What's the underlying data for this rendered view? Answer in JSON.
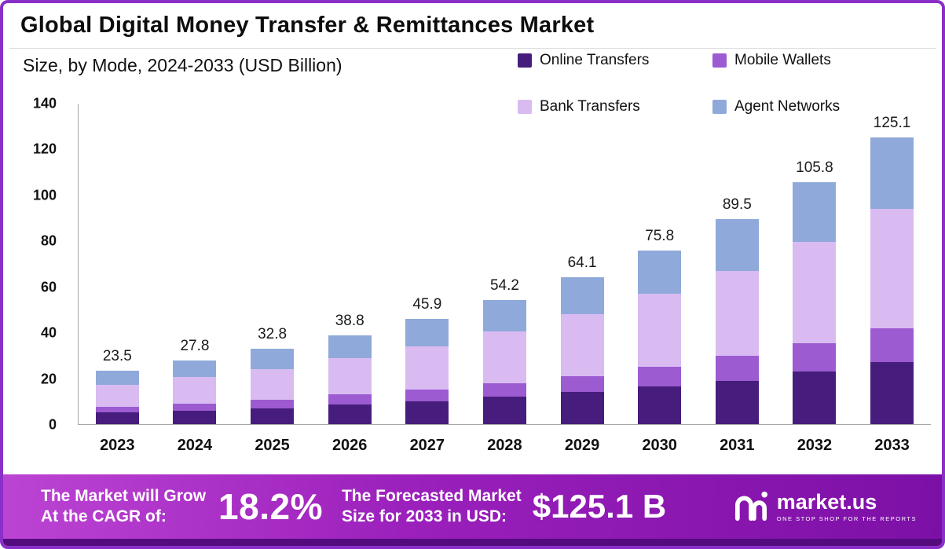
{
  "header": {
    "title": "Global Digital Money Transfer & Remittances Market",
    "subtitle": "Size, by Mode, 2024-2033 (USD Billion)"
  },
  "chart_data": {
    "type": "bar",
    "stacked": true,
    "title": "Global Digital Money Transfer & Remittances Market",
    "subtitle": "Size, by Mode, 2024-2033 (USD Billion)",
    "xlabel": "",
    "ylabel": "USD Billion",
    "ylim": [
      0,
      140
    ],
    "yticks": [
      0,
      20,
      40,
      60,
      80,
      100,
      120,
      140
    ],
    "grid": false,
    "legend_position": "top-right",
    "categories": [
      "2023",
      "2024",
      "2025",
      "2026",
      "2027",
      "2028",
      "2029",
      "2030",
      "2031",
      "2032",
      "2033"
    ],
    "series": [
      {
        "name": "Online Transfers",
        "color": "#461d7c",
        "values": [
          5.0,
          6.0,
          7.0,
          8.5,
          10.0,
          12.0,
          14.0,
          16.5,
          19.0,
          23.0,
          27.0
        ]
      },
      {
        "name": "Mobile Wallets",
        "color": "#9c5bd1",
        "values": [
          2.5,
          3.0,
          3.5,
          4.5,
          5.0,
          6.0,
          7.0,
          8.5,
          11.0,
          12.5,
          15.0
        ]
      },
      {
        "name": "Bank Transfers",
        "color": "#d9bbf2",
        "values": [
          9.5,
          11.5,
          13.5,
          16.0,
          19.0,
          22.5,
          27.0,
          32.0,
          37.0,
          44.0,
          52.0
        ]
      },
      {
        "name": "Agent Networks",
        "color": "#8fa9da",
        "values": [
          6.5,
          7.3,
          8.8,
          9.8,
          11.9,
          13.7,
          16.1,
          18.8,
          22.5,
          26.3,
          31.1
        ]
      }
    ],
    "totals": [
      "23.5",
      "27.8",
      "32.8",
      "38.8",
      "45.9",
      "54.2",
      "64.1",
      "75.8",
      "89.5",
      "105.8",
      "125.1"
    ]
  },
  "banner": {
    "cagr_line1": "The Market will Grow",
    "cagr_line2": "At the CAGR of:",
    "cagr_value": "18.2%",
    "forecast_line1": "The Forecasted Market",
    "forecast_line2": "Size for 2033 in USD:",
    "forecast_value": "$125.1 B",
    "logo_text": "market.us",
    "logo_tagline": "ONE STOP SHOP FOR THE REPORTS"
  },
  "colors": {
    "frame_border": "#8b2fc9",
    "banner_gradient_start": "#bc44d3",
    "banner_gradient_end": "#7c10a6",
    "banner_strip": "#530b7e"
  }
}
